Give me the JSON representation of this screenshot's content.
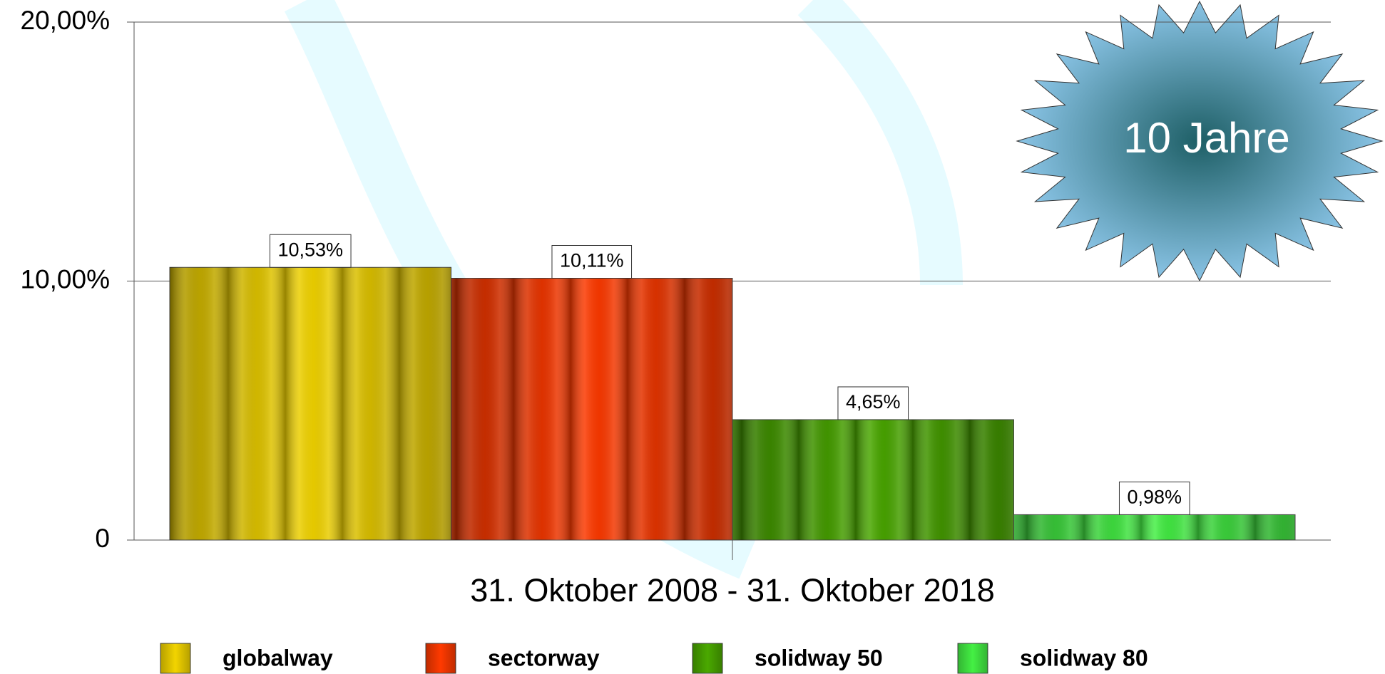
{
  "chart_data": {
    "type": "bar",
    "categories": [
      "31. Oktober 2008 - 31. Oktober 2018"
    ],
    "series": [
      {
        "name": "globalway",
        "color": "#f2d400",
        "values": [
          10.53
        ],
        "value_labels": [
          "10,53%"
        ]
      },
      {
        "name": "sectorway",
        "color": "#ff3a00",
        "values": [
          10.11
        ],
        "value_labels": [
          "10,11%"
        ]
      },
      {
        "name": "solidway 50",
        "color": "#4aa800",
        "values": [
          4.65
        ],
        "value_labels": [
          "4,65%"
        ]
      },
      {
        "name": "solidway 80",
        "color": "#44f044",
        "values": [
          0.98
        ],
        "value_labels": [
          "0,98%"
        ]
      }
    ],
    "ylim": [
      0,
      20
    ],
    "yticks": [
      {
        "value": 0,
        "label": "0"
      },
      {
        "value": 10,
        "label": "10,00%"
      },
      {
        "value": 20,
        "label": "20,00%"
      }
    ],
    "grid": true,
    "annotation": "10 Jahre"
  }
}
